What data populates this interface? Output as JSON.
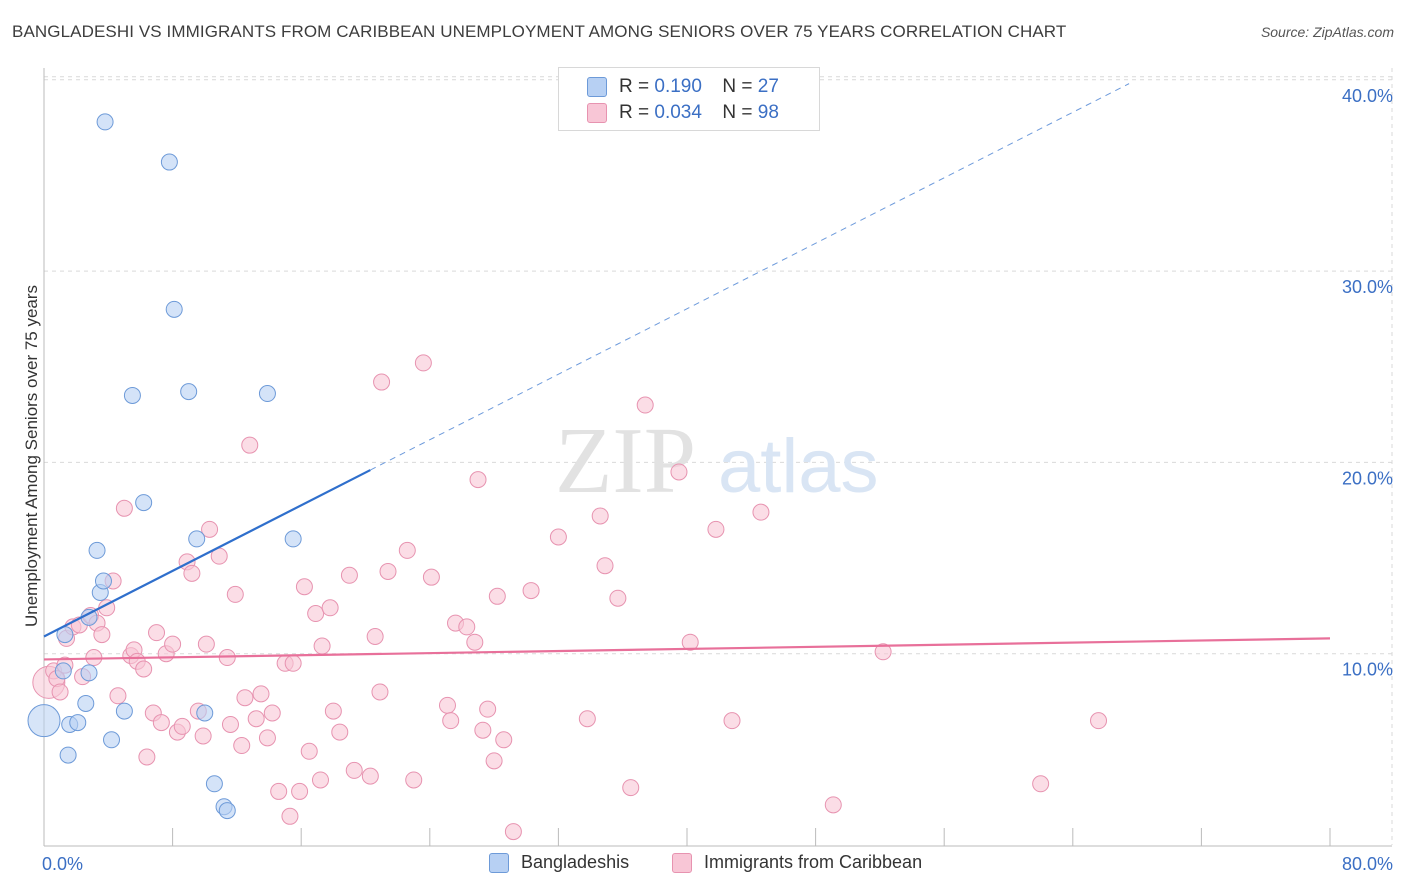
{
  "header": {
    "title": "BANGLADESHI VS IMMIGRANTS FROM CARIBBEAN UNEMPLOYMENT AMONG SENIORS OVER 75 YEARS CORRELATION CHART",
    "source": "Source: ZipAtlas.com"
  },
  "legend": {
    "r_label": "R =",
    "n_label": "N =",
    "series": [
      {
        "r": "0.190",
        "n": "27"
      },
      {
        "r": "0.034",
        "n": "98"
      }
    ]
  },
  "bottom_legend": [
    "Bangladeshis",
    "Immigrants from Caribbean"
  ],
  "watermark": {
    "zip": "ZIP",
    "atlas": "atlas"
  },
  "colors": {
    "blue_fill": "#b7d0f3",
    "blue_stroke": "#6d9ad8",
    "blue_line": "#2f6fcc",
    "pink_fill": "#f8c6d6",
    "pink_stroke": "#e793b0",
    "pink_line": "#e8709a",
    "tick_label": "#3b6fc4",
    "grid": "#d9d9d9"
  },
  "chart_data": {
    "type": "scatter",
    "title": "BANGLADESHI VS IMMIGRANTS FROM CARIBBEAN UNEMPLOYMENT AMONG SENIORS OVER 75 YEARS CORRELATION CHART",
    "xlabel": "",
    "ylabel": "Unemployment Among Seniors over 75 years",
    "xlim": [
      0,
      80
    ],
    "ylim": [
      0,
      40
    ],
    "x_tick_labels": [
      {
        "value": 0,
        "label": "0.0%"
      },
      {
        "value": 80,
        "label": "80.0%"
      }
    ],
    "y_tick_labels": [
      {
        "value": 10,
        "label": "10.0%"
      },
      {
        "value": 20,
        "label": "20.0%"
      },
      {
        "value": 30,
        "label": "30.0%"
      },
      {
        "value": 40,
        "label": "40.0%"
      }
    ],
    "series": [
      {
        "name": "Bangladeshis",
        "r": 0.19,
        "n": 27,
        "trend": {
          "x0": 0,
          "y0": 10.9,
          "x1": 20.3,
          "y1": 19.6,
          "dash_to_x": 67.5,
          "dash_to_y": 39.8
        },
        "points": [
          {
            "x": 0.0,
            "y": 6.5,
            "big": true
          },
          {
            "x": 1.2,
            "y": 9.1
          },
          {
            "x": 1.3,
            "y": 11.0
          },
          {
            "x": 1.6,
            "y": 6.3
          },
          {
            "x": 1.5,
            "y": 4.7
          },
          {
            "x": 2.1,
            "y": 6.4
          },
          {
            "x": 2.6,
            "y": 7.4
          },
          {
            "x": 2.8,
            "y": 11.9
          },
          {
            "x": 3.3,
            "y": 15.4
          },
          {
            "x": 3.5,
            "y": 13.2
          },
          {
            "x": 3.7,
            "y": 13.8
          },
          {
            "x": 3.8,
            "y": 37.8
          },
          {
            "x": 4.2,
            "y": 5.5
          },
          {
            "x": 5.0,
            "y": 7.0
          },
          {
            "x": 5.5,
            "y": 23.5
          },
          {
            "x": 6.2,
            "y": 17.9
          },
          {
            "x": 7.8,
            "y": 35.7
          },
          {
            "x": 8.1,
            "y": 28.0
          },
          {
            "x": 9.0,
            "y": 23.7
          },
          {
            "x": 9.5,
            "y": 16.0
          },
          {
            "x": 10.0,
            "y": 6.9
          },
          {
            "x": 10.6,
            "y": 3.2
          },
          {
            "x": 11.2,
            "y": 2.0
          },
          {
            "x": 11.4,
            "y": 1.8
          },
          {
            "x": 13.9,
            "y": 23.6
          },
          {
            "x": 15.5,
            "y": 16.0
          },
          {
            "x": 2.8,
            "y": 9.0
          }
        ]
      },
      {
        "name": "Immigrants from Caribbean",
        "r": 0.034,
        "n": 98,
        "trend": {
          "x0": 0,
          "y0": 9.7,
          "x1": 80,
          "y1": 10.8
        },
        "points": [
          {
            "x": 0.3,
            "y": 8.5,
            "big": true
          },
          {
            "x": 0.6,
            "y": 9.1
          },
          {
            "x": 0.8,
            "y": 8.7
          },
          {
            "x": 1.0,
            "y": 8.0
          },
          {
            "x": 1.3,
            "y": 9.4
          },
          {
            "x": 1.4,
            "y": 10.8
          },
          {
            "x": 1.8,
            "y": 11.4
          },
          {
            "x": 2.2,
            "y": 11.5
          },
          {
            "x": 2.4,
            "y": 8.8
          },
          {
            "x": 2.9,
            "y": 12.0
          },
          {
            "x": 3.1,
            "y": 9.8
          },
          {
            "x": 3.3,
            "y": 11.6
          },
          {
            "x": 3.6,
            "y": 11.0
          },
          {
            "x": 3.9,
            "y": 12.4
          },
          {
            "x": 4.3,
            "y": 13.8
          },
          {
            "x": 4.6,
            "y": 7.8
          },
          {
            "x": 5.0,
            "y": 17.6
          },
          {
            "x": 5.4,
            "y": 9.9
          },
          {
            "x": 5.6,
            "y": 10.2
          },
          {
            "x": 5.8,
            "y": 9.6
          },
          {
            "x": 6.2,
            "y": 9.2
          },
          {
            "x": 6.4,
            "y": 4.6
          },
          {
            "x": 6.8,
            "y": 6.9
          },
          {
            "x": 7.0,
            "y": 11.1
          },
          {
            "x": 7.3,
            "y": 6.4
          },
          {
            "x": 7.6,
            "y": 10.0
          },
          {
            "x": 8.0,
            "y": 10.5
          },
          {
            "x": 8.3,
            "y": 5.9
          },
          {
            "x": 8.6,
            "y": 6.2
          },
          {
            "x": 8.9,
            "y": 14.8
          },
          {
            "x": 9.2,
            "y": 14.2
          },
          {
            "x": 9.6,
            "y": 7.0
          },
          {
            "x": 9.9,
            "y": 5.7
          },
          {
            "x": 10.1,
            "y": 10.5
          },
          {
            "x": 10.3,
            "y": 16.5
          },
          {
            "x": 10.9,
            "y": 15.1
          },
          {
            "x": 11.4,
            "y": 9.8
          },
          {
            "x": 11.6,
            "y": 6.3
          },
          {
            "x": 11.9,
            "y": 13.1
          },
          {
            "x": 12.3,
            "y": 5.2
          },
          {
            "x": 12.5,
            "y": 7.7
          },
          {
            "x": 12.8,
            "y": 20.9
          },
          {
            "x": 13.2,
            "y": 6.6
          },
          {
            "x": 13.5,
            "y": 7.9
          },
          {
            "x": 13.9,
            "y": 5.6
          },
          {
            "x": 14.2,
            "y": 6.9
          },
          {
            "x": 14.6,
            "y": 2.8
          },
          {
            "x": 15.0,
            "y": 9.5
          },
          {
            "x": 15.3,
            "y": 1.5
          },
          {
            "x": 15.5,
            "y": 9.5
          },
          {
            "x": 15.9,
            "y": 2.8
          },
          {
            "x": 16.2,
            "y": 13.5
          },
          {
            "x": 16.5,
            "y": 4.9
          },
          {
            "x": 16.9,
            "y": 12.1
          },
          {
            "x": 17.2,
            "y": 3.4
          },
          {
            "x": 17.3,
            "y": 10.4
          },
          {
            "x": 17.8,
            "y": 12.4
          },
          {
            "x": 18.0,
            "y": 7.0
          },
          {
            "x": 18.4,
            "y": 5.9
          },
          {
            "x": 19.0,
            "y": 14.1
          },
          {
            "x": 19.3,
            "y": 3.9
          },
          {
            "x": 20.3,
            "y": 3.6
          },
          {
            "x": 20.6,
            "y": 10.9
          },
          {
            "x": 20.9,
            "y": 8.0
          },
          {
            "x": 21.0,
            "y": 24.2
          },
          {
            "x": 21.4,
            "y": 14.3
          },
          {
            "x": 22.6,
            "y": 15.4
          },
          {
            "x": 23.0,
            "y": 3.4
          },
          {
            "x": 23.6,
            "y": 25.2
          },
          {
            "x": 24.1,
            "y": 14.0
          },
          {
            "x": 25.1,
            "y": 7.3
          },
          {
            "x": 25.3,
            "y": 6.5
          },
          {
            "x": 25.6,
            "y": 11.6
          },
          {
            "x": 26.3,
            "y": 11.4
          },
          {
            "x": 26.8,
            "y": 10.6
          },
          {
            "x": 27.0,
            "y": 19.1
          },
          {
            "x": 27.3,
            "y": 6.0
          },
          {
            "x": 27.6,
            "y": 7.1
          },
          {
            "x": 28.0,
            "y": 4.4
          },
          {
            "x": 28.2,
            "y": 13.0
          },
          {
            "x": 28.6,
            "y": 5.5
          },
          {
            "x": 29.2,
            "y": 0.7
          },
          {
            "x": 30.3,
            "y": 13.3
          },
          {
            "x": 32.0,
            "y": 16.1
          },
          {
            "x": 33.8,
            "y": 6.6
          },
          {
            "x": 34.6,
            "y": 17.2
          },
          {
            "x": 34.9,
            "y": 14.6
          },
          {
            "x": 35.7,
            "y": 12.9
          },
          {
            "x": 36.5,
            "y": 3.0
          },
          {
            "x": 37.4,
            "y": 23.0
          },
          {
            "x": 39.5,
            "y": 19.5
          },
          {
            "x": 40.2,
            "y": 10.6
          },
          {
            "x": 41.8,
            "y": 16.5
          },
          {
            "x": 42.8,
            "y": 6.5
          },
          {
            "x": 44.6,
            "y": 17.4
          },
          {
            "x": 49.1,
            "y": 2.1
          },
          {
            "x": 52.2,
            "y": 10.1
          },
          {
            "x": 62.0,
            "y": 3.2
          },
          {
            "x": 65.6,
            "y": 6.5
          }
        ]
      }
    ]
  }
}
